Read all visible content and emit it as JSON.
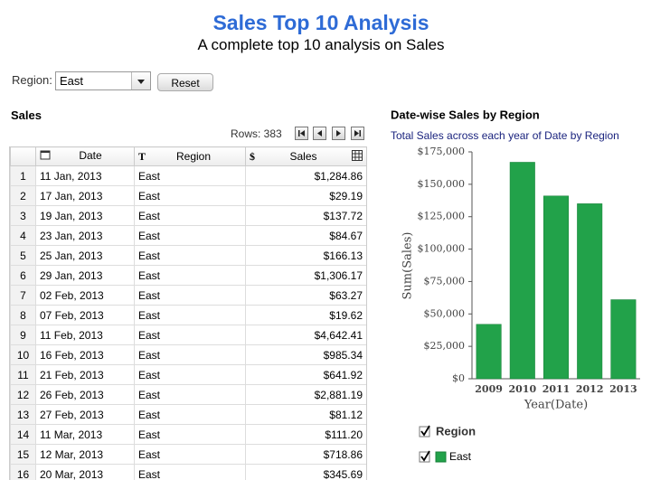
{
  "header": {
    "title": "Sales Top 10 Analysis",
    "subtitle": "A complete top 10 analysis on Sales"
  },
  "filter": {
    "label": "Region:",
    "value": "East",
    "button": "Reset"
  },
  "table": {
    "title": "Sales",
    "rows_label": "Rows: 383",
    "columns": [
      {
        "label": "Date"
      },
      {
        "label": "Region",
        "icon": "T"
      },
      {
        "label": "Sales",
        "icon": "$"
      }
    ],
    "rows": [
      [
        1,
        "11 Jan, 2013",
        "East",
        "$1,284.86"
      ],
      [
        2,
        "17 Jan, 2013",
        "East",
        "$29.19"
      ],
      [
        3,
        "19 Jan, 2013",
        "East",
        "$137.72"
      ],
      [
        4,
        "23 Jan, 2013",
        "East",
        "$84.67"
      ],
      [
        5,
        "25 Jan, 2013",
        "East",
        "$166.13"
      ],
      [
        6,
        "29 Jan, 2013",
        "East",
        "$1,306.17"
      ],
      [
        7,
        "02 Feb, 2013",
        "East",
        "$63.27"
      ],
      [
        8,
        "07 Feb, 2013",
        "East",
        "$19.62"
      ],
      [
        9,
        "11 Feb, 2013",
        "East",
        "$4,642.41"
      ],
      [
        10,
        "16 Feb, 2013",
        "East",
        "$985.34"
      ],
      [
        11,
        "21 Feb, 2013",
        "East",
        "$641.92"
      ],
      [
        12,
        "26 Feb, 2013",
        "East",
        "$2,881.19"
      ],
      [
        13,
        "27 Feb, 2013",
        "East",
        "$81.12"
      ],
      [
        14,
        "11 Mar, 2013",
        "East",
        "$111.20"
      ],
      [
        15,
        "12 Mar, 2013",
        "East",
        "$718.86"
      ],
      [
        16,
        "20 Mar, 2013",
        "East",
        "$345.69"
      ]
    ]
  },
  "chart_data": {
    "type": "bar",
    "title": "Date-wise Sales by Region",
    "subtitle": "Total Sales across each year of Date by Region",
    "x_label": "Year(Date)",
    "y_label": "Sum(Sales)",
    "categories": [
      "2009",
      "2010",
      "2011",
      "2012",
      "2013"
    ],
    "series": [
      {
        "name": "East",
        "color": "#22a24a",
        "values": [
          42000,
          167000,
          141000,
          135000,
          61000
        ]
      }
    ],
    "legend_title": "Region",
    "ylim": [
      0,
      175000
    ],
    "yticks": [
      {
        "value": 0,
        "label": "$0"
      },
      {
        "value": 25000,
        "label": "$25,000"
      },
      {
        "value": 50000,
        "label": "$50,000"
      },
      {
        "value": 75000,
        "label": "$75,000"
      },
      {
        "value": 100000,
        "label": "$100,000"
      },
      {
        "value": 125000,
        "label": "$125,000"
      },
      {
        "value": 150000,
        "label": "$150,000"
      },
      {
        "value": 175000,
        "label": "$175,000"
      }
    ],
    "grid": false
  }
}
